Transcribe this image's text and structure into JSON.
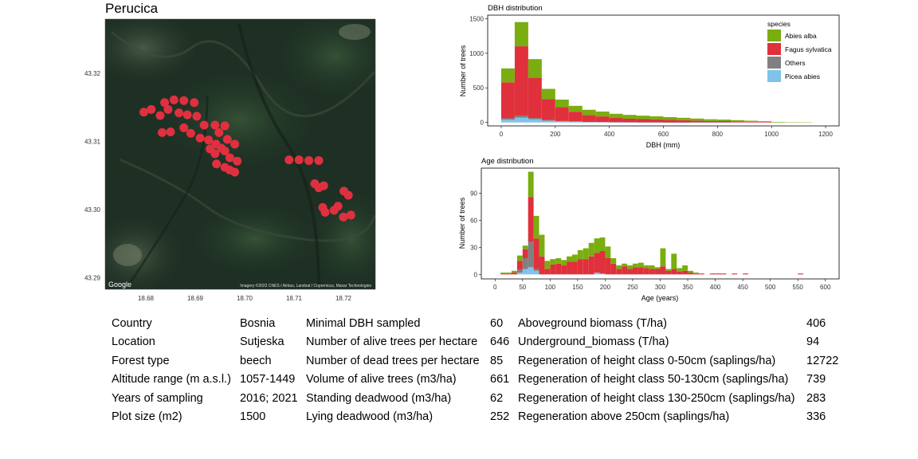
{
  "map": {
    "title": "Perucica",
    "google_label": "Google",
    "attribution": "Imagery ©2022 CNES / Airbus, Landsat / Copernicus, Maxar Technologies",
    "lat_ticks": [
      "43.32",
      "43.31",
      "43.30",
      "43.29"
    ],
    "lon_ticks": [
      "18.68",
      "18.69",
      "18.70",
      "18.71",
      "18.72"
    ],
    "plot_marker_color": "#e03040",
    "plots": [
      {
        "lon": 18.6796,
        "lat": 43.3143
      },
      {
        "lon": 18.6811,
        "lat": 43.3147
      },
      {
        "lon": 18.6838,
        "lat": 43.3157
      },
      {
        "lon": 18.6857,
        "lat": 43.3161
      },
      {
        "lon": 18.6877,
        "lat": 43.316
      },
      {
        "lon": 18.6898,
        "lat": 43.3157
      },
      {
        "lon": 18.6845,
        "lat": 43.3147
      },
      {
        "lon": 18.6829,
        "lat": 43.3138
      },
      {
        "lon": 18.6867,
        "lat": 43.3142
      },
      {
        "lon": 18.6884,
        "lat": 43.3139
      },
      {
        "lon": 18.6903,
        "lat": 43.3137
      },
      {
        "lon": 18.6833,
        "lat": 43.3113
      },
      {
        "lon": 18.685,
        "lat": 43.3114
      },
      {
        "lon": 18.6877,
        "lat": 43.312
      },
      {
        "lon": 18.6891,
        "lat": 43.3112
      },
      {
        "lon": 18.6918,
        "lat": 43.3124
      },
      {
        "lon": 18.694,
        "lat": 43.3124
      },
      {
        "lon": 18.696,
        "lat": 43.3123
      },
      {
        "lon": 18.6948,
        "lat": 43.3113
      },
      {
        "lon": 18.6965,
        "lat": 43.3103
      },
      {
        "lon": 18.698,
        "lat": 43.3096
      },
      {
        "lon": 18.691,
        "lat": 43.3105
      },
      {
        "lon": 18.6927,
        "lat": 43.3102
      },
      {
        "lon": 18.6942,
        "lat": 43.3096
      },
      {
        "lon": 18.6953,
        "lat": 43.309
      },
      {
        "lon": 18.696,
        "lat": 43.3086
      },
      {
        "lon": 18.693,
        "lat": 43.3089
      },
      {
        "lon": 18.697,
        "lat": 43.3076
      },
      {
        "lon": 18.6985,
        "lat": 43.3071
      },
      {
        "lon": 18.694,
        "lat": 43.3082
      },
      {
        "lon": 18.6943,
        "lat": 43.3067
      },
      {
        "lon": 18.696,
        "lat": 43.3062
      },
      {
        "lon": 18.697,
        "lat": 43.3058
      },
      {
        "lon": 18.698,
        "lat": 43.3055
      },
      {
        "lon": 18.709,
        "lat": 43.3073
      },
      {
        "lon": 18.711,
        "lat": 43.3073
      },
      {
        "lon": 18.713,
        "lat": 43.3072
      },
      {
        "lon": 18.715,
        "lat": 43.3072
      },
      {
        "lon": 18.7142,
        "lat": 43.3038
      },
      {
        "lon": 18.715,
        "lat": 43.3032
      },
      {
        "lon": 18.716,
        "lat": 43.3035
      },
      {
        "lon": 18.7201,
        "lat": 43.3027
      },
      {
        "lon": 18.721,
        "lat": 43.3021
      },
      {
        "lon": 18.7158,
        "lat": 43.3003
      },
      {
        "lon": 18.7163,
        "lat": 43.2996
      },
      {
        "lon": 18.7181,
        "lat": 43.2999
      },
      {
        "lon": 18.7189,
        "lat": 43.3005
      },
      {
        "lon": 18.72,
        "lat": 43.2989
      },
      {
        "lon": 18.7215,
        "lat": 43.2992
      }
    ]
  },
  "chart_data": [
    {
      "type": "bar",
      "stacked": true,
      "title": "DBH distribution",
      "xlabel": "DBH (mm)",
      "ylabel": "Number of trees",
      "xlim": [
        -50,
        1250
      ],
      "ylim": [
        -50,
        1550
      ],
      "xticks": [
        "0",
        "200",
        "400",
        "600",
        "800",
        "1000",
        "1200"
      ],
      "yticks": [
        "0",
        "500",
        "1000",
        "1500"
      ],
      "grid": false,
      "legend": {
        "title": "species",
        "position": "top-right"
      },
      "bin_width": 50,
      "bin_centers": [
        25,
        75,
        125,
        175,
        225,
        275,
        325,
        375,
        425,
        475,
        525,
        575,
        625,
        675,
        725,
        775,
        825,
        875,
        925,
        975,
        1025,
        1075,
        1125
      ],
      "series": [
        {
          "name": "Picea abies",
          "color": "#7fc3ea",
          "values": [
            40,
            70,
            45,
            25,
            15,
            10,
            5,
            5,
            3,
            3,
            2,
            2,
            1,
            1,
            1,
            1,
            1,
            0,
            0,
            0,
            0,
            0,
            0
          ]
        },
        {
          "name": "Others",
          "color": "#808080",
          "values": [
            20,
            30,
            20,
            10,
            5,
            5,
            3,
            2,
            2,
            1,
            1,
            1,
            1,
            1,
            0,
            0,
            0,
            0,
            0,
            0,
            0,
            0,
            0
          ]
        },
        {
          "name": "Fagus sylvatica",
          "color": "#e0303c",
          "values": [
            520,
            1000,
            580,
            300,
            200,
            140,
            100,
            80,
            60,
            50,
            45,
            40,
            35,
            30,
            25,
            20,
            18,
            15,
            10,
            8,
            0,
            0,
            0
          ]
        },
        {
          "name": "Abies alba",
          "color": "#7aad10",
          "values": [
            200,
            350,
            270,
            150,
            110,
            85,
            75,
            70,
            60,
            55,
            50,
            45,
            40,
            35,
            30,
            25,
            22,
            18,
            15,
            10,
            8,
            5,
            4
          ]
        }
      ]
    },
    {
      "type": "bar",
      "stacked": true,
      "title": "Age distribution",
      "xlabel": "Age (years)",
      "ylabel": "Number of trees",
      "xlim": [
        -25,
        625
      ],
      "ylim": [
        -5,
        118
      ],
      "xticks": [
        "0",
        "50",
        "100",
        "150",
        "200",
        "250",
        "300",
        "350",
        "400",
        "450",
        "500",
        "550",
        "600"
      ],
      "yticks": [
        "0",
        "30",
        "60",
        "90"
      ],
      "grid": false,
      "bin_width": 10,
      "bin_centers": [
        15,
        25,
        35,
        45,
        55,
        65,
        75,
        85,
        95,
        105,
        115,
        125,
        135,
        145,
        155,
        165,
        175,
        185,
        195,
        205,
        215,
        225,
        235,
        245,
        255,
        265,
        275,
        285,
        295,
        305,
        315,
        325,
        335,
        345,
        355,
        365,
        375,
        385,
        395,
        405,
        415,
        425,
        435,
        445,
        455,
        465,
        475,
        485,
        495,
        505,
        515,
        525,
        535,
        545,
        555
      ],
      "series": [
        {
          "name": "Picea abies",
          "color": "#7fc3ea",
          "values": [
            0,
            0,
            0,
            2,
            6,
            8,
            4,
            0,
            0,
            0,
            0,
            0,
            0,
            0,
            0,
            0,
            0,
            2,
            1,
            0,
            0,
            0,
            0,
            0,
            0,
            0,
            0,
            0,
            0,
            0,
            0,
            0,
            0,
            0,
            0,
            0,
            0,
            0,
            0,
            0,
            0,
            0,
            0,
            0,
            0,
            0,
            0,
            0,
            0,
            0,
            0,
            0,
            0,
            0,
            0
          ]
        },
        {
          "name": "Others",
          "color": "#808080",
          "values": [
            0,
            0,
            0,
            3,
            12,
            28,
            2,
            0,
            0,
            0,
            0,
            0,
            0,
            0,
            0,
            0,
            0,
            0,
            0,
            0,
            0,
            0,
            0,
            0,
            0,
            0,
            0,
            0,
            0,
            0,
            0,
            0,
            0,
            0,
            0,
            0,
            0,
            0,
            0,
            0,
            0,
            0,
            0,
            0,
            0,
            0,
            0,
            0,
            0,
            0,
            0,
            0,
            0,
            0,
            0
          ]
        },
        {
          "name": "Fagus sylvatica",
          "color": "#e0303c",
          "values": [
            1,
            1,
            2,
            10,
            10,
            50,
            34,
            20,
            6,
            11,
            12,
            10,
            14,
            14,
            17,
            17,
            20,
            22,
            25,
            18,
            12,
            6,
            9,
            6,
            8,
            8,
            7,
            6,
            6,
            9,
            4,
            6,
            3,
            4,
            2,
            1,
            1,
            0,
            1,
            1,
            1,
            0,
            1,
            0,
            1,
            0,
            0,
            0,
            0,
            0,
            0,
            0,
            0,
            0,
            1
          ]
        },
        {
          "name": "Abies alba",
          "color": "#7aad10",
          "values": [
            1,
            1,
            2,
            6,
            4,
            28,
            25,
            24,
            9,
            6,
            6,
            6,
            6,
            8,
            10,
            12,
            15,
            16,
            15,
            13,
            6,
            4,
            3,
            4,
            4,
            5,
            3,
            4,
            2,
            20,
            2,
            17,
            4,
            6,
            2,
            1,
            0,
            0,
            0,
            0,
            0,
            0,
            0,
            0,
            0,
            0,
            0,
            0,
            0,
            0,
            0,
            0,
            0,
            0,
            0
          ]
        }
      ]
    }
  ],
  "stats": {
    "col1": [
      {
        "label": "Country",
        "value": "Bosnia"
      },
      {
        "label": "Location",
        "value": "Sutjeska"
      },
      {
        "label": "Forest type",
        "value": "beech"
      },
      {
        "label": "Altitude range (m a.s.l.)",
        "value": "1057-1449"
      },
      {
        "label": "Years of sampling",
        "value": "2016; 2021"
      },
      {
        "label": "Plot size (m2)",
        "value": "1500"
      }
    ],
    "col2": [
      {
        "label": "Minimal DBH sampled",
        "value": "60"
      },
      {
        "label": "Number of alive trees per hectare",
        "value": "646"
      },
      {
        "label": "Number of dead trees per hectare",
        "value": "85"
      },
      {
        "label": "Volume of alive trees (m3/ha)",
        "value": "661"
      },
      {
        "label": "Standing deadwood (m3/ha)",
        "value": "62"
      },
      {
        "label": "Lying deadwood (m3/ha)",
        "value": "252"
      }
    ],
    "col3": [
      {
        "label": "Aboveground biomass (T/ha)",
        "value": "406"
      },
      {
        "label": "Underground_biomass (T/ha)",
        "value": "94"
      },
      {
        "label": "Regeneration of height class 0-50cm (saplings/ha)",
        "value": "12722"
      },
      {
        "label": "Regeneration of height class 50-130cm (saplings/ha)",
        "value": "739"
      },
      {
        "label": "Regeneration of height class 130-250cm (saplings/ha)",
        "value": "283"
      },
      {
        "label": "Regeneration above 250cm (saplings/ha)",
        "value": "336"
      }
    ]
  }
}
